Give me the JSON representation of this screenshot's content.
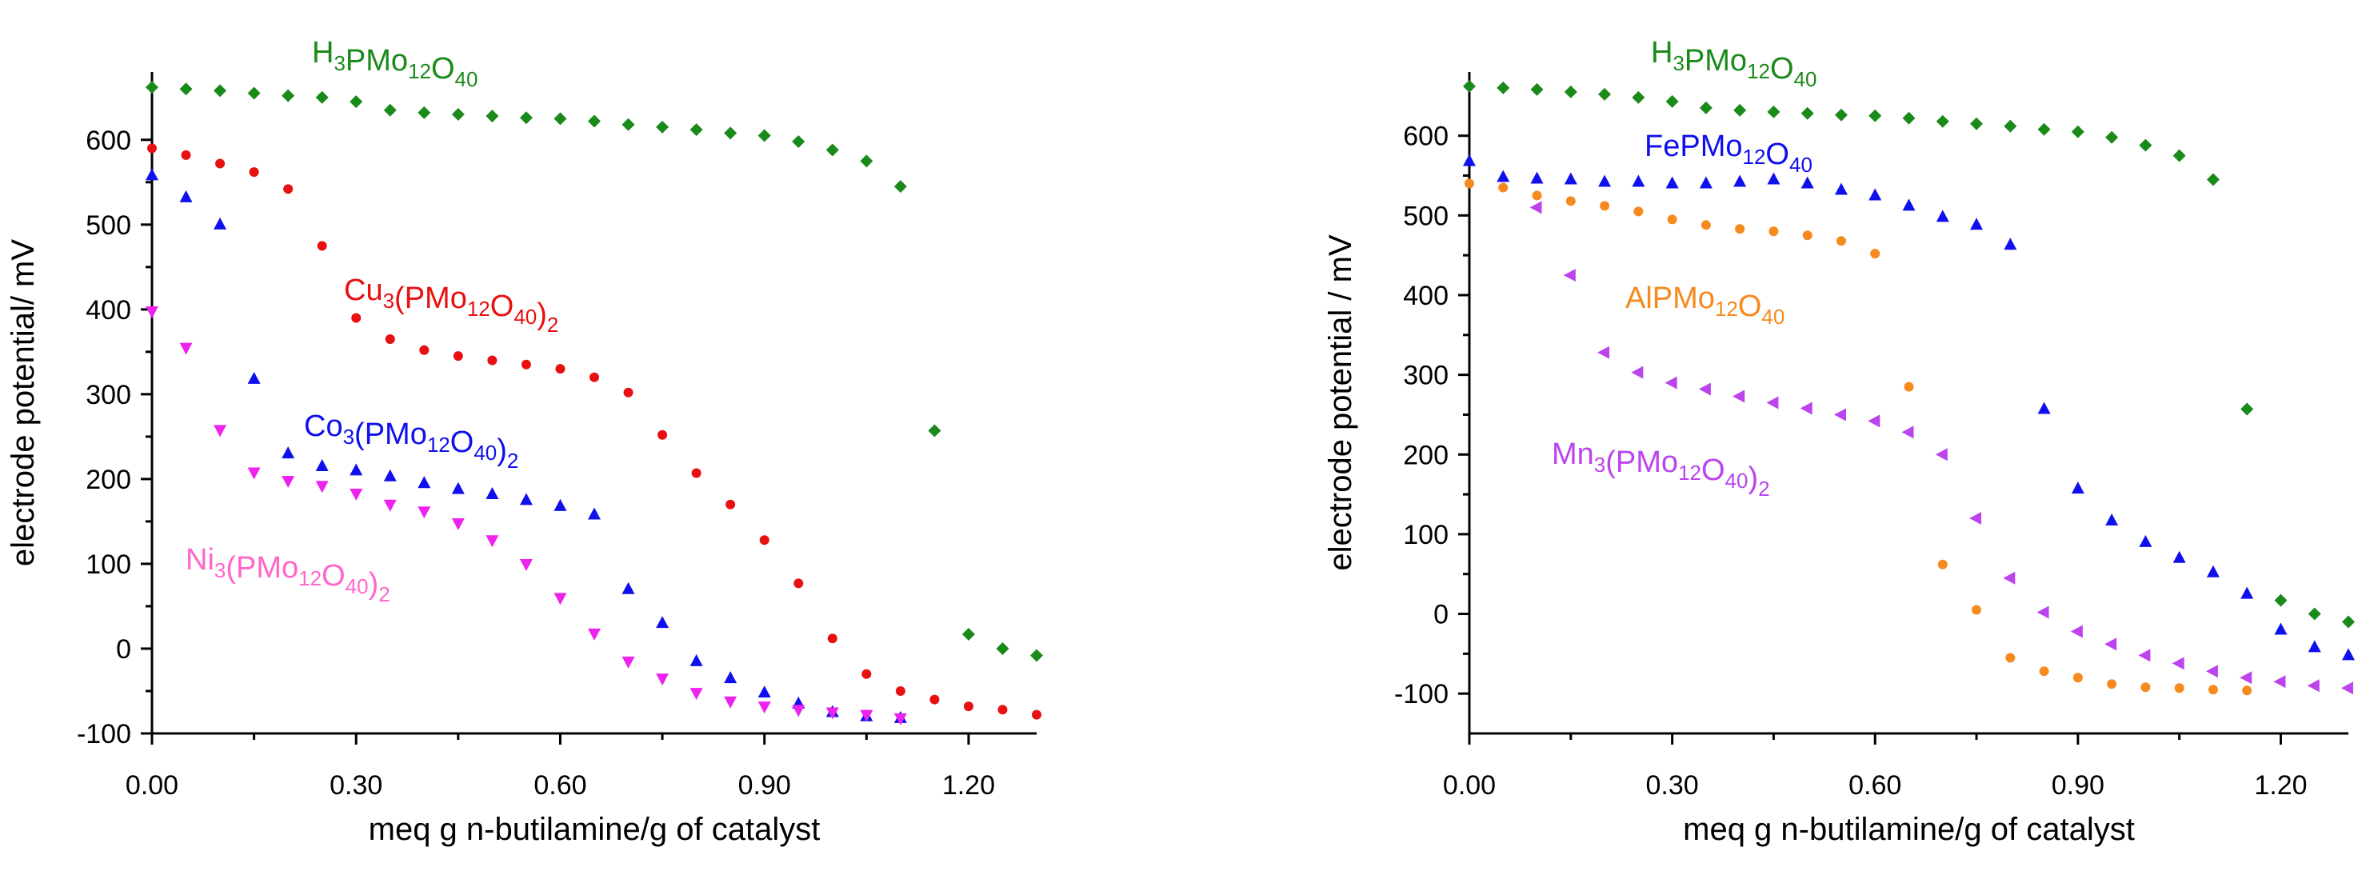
{
  "chart_data": [
    {
      "type": "scatter",
      "title": "",
      "xlabel": "meq g n-butilamine/g of catalyst",
      "ylabel": "electrode potential/ mV",
      "xlim": [
        0,
        1.3
      ],
      "ylim": [
        -100,
        680
      ],
      "xticks": [
        "0.00",
        "0.30",
        "0.60",
        "0.90",
        "1.20"
      ],
      "xtick_values": [
        0,
        0.3,
        0.6,
        0.9,
        1.2
      ],
      "yticks": [
        "-100",
        "0",
        "100",
        "200",
        "300",
        "400",
        "500",
        "600"
      ],
      "ytick_values": [
        -100,
        0,
        100,
        200,
        300,
        400,
        500,
        600
      ],
      "series": [
        {
          "name": "H3PMo12O40",
          "label_main": "H",
          "label_sub1": "3",
          "label_mid": "PMo",
          "label_sub2": "12",
          "label_mid2": "O",
          "label_sub3": "40",
          "label_tail": "",
          "color": "#1a8a1a",
          "marker": "diamond",
          "x": [
            0.0,
            0.05,
            0.1,
            0.15,
            0.2,
            0.25,
            0.3,
            0.35,
            0.4,
            0.45,
            0.5,
            0.55,
            0.6,
            0.65,
            0.7,
            0.75,
            0.8,
            0.85,
            0.9,
            0.95,
            1.0,
            1.05,
            1.1,
            1.15,
            1.2,
            1.25,
            1.3
          ],
          "y": [
            662,
            660,
            658,
            655,
            652,
            650,
            645,
            635,
            632,
            630,
            628,
            626,
            625,
            622,
            618,
            615,
            612,
            608,
            605,
            598,
            588,
            575,
            545,
            257,
            17,
            0,
            -8
          ]
        },
        {
          "name": "Cu3(PMo12O40)2",
          "label_main": "Cu",
          "label_sub1": "3",
          "label_mid": "(PMo",
          "label_sub2": "12",
          "label_mid2": "O",
          "label_sub3": "40",
          "label_tail": ")",
          "label_sub4": "2",
          "color": "#e81010",
          "marker": "circle",
          "x": [
            0.0,
            0.05,
            0.1,
            0.15,
            0.2,
            0.25,
            0.3,
            0.35,
            0.4,
            0.45,
            0.5,
            0.55,
            0.6,
            0.65,
            0.7,
            0.75,
            0.8,
            0.85,
            0.9,
            0.95,
            1.0,
            1.05,
            1.1,
            1.15,
            1.2,
            1.25,
            1.3
          ],
          "y": [
            590,
            582,
            572,
            562,
            542,
            475,
            390,
            365,
            352,
            345,
            340,
            335,
            330,
            320,
            302,
            252,
            207,
            170,
            128,
            77,
            12,
            -30,
            -50,
            -60,
            -68,
            -72,
            -78
          ]
        },
        {
          "name": "Co3(PMo12O40)2",
          "label_main": "Co",
          "label_sub1": "3",
          "label_mid": "(PMo",
          "label_sub2": "12",
          "label_mid2": "O",
          "label_sub3": "40",
          "label_tail": ")",
          "label_sub4": "2",
          "color": "#1010ee",
          "marker": "triangle-up",
          "x": [
            0.0,
            0.05,
            0.1,
            0.15,
            0.2,
            0.25,
            0.3,
            0.35,
            0.4,
            0.45,
            0.5,
            0.55,
            0.6,
            0.65,
            0.7,
            0.75,
            0.8,
            0.85,
            0.9,
            0.95,
            1.0,
            1.05,
            1.1
          ],
          "y": [
            558,
            532,
            500,
            318,
            230,
            215,
            210,
            203,
            195,
            188,
            182,
            175,
            168,
            158,
            70,
            30,
            -15,
            -35,
            -52,
            -65,
            -75,
            -80,
            -82
          ]
        },
        {
          "name": "Ni3(PMo12O40)2",
          "label_main": "Ni",
          "label_sub1": "3",
          "label_mid": "(PMo",
          "label_sub2": "12",
          "label_mid2": "O",
          "label_sub3": "40",
          "label_tail": ")",
          "label_sub4": "2",
          "color": "#ee22ee",
          "label_color": "#ff66cc",
          "marker": "triangle-down",
          "x": [
            0.0,
            0.05,
            0.1,
            0.15,
            0.2,
            0.25,
            0.3,
            0.35,
            0.4,
            0.45,
            0.5,
            0.55,
            0.6,
            0.65,
            0.7,
            0.75,
            0.8,
            0.85,
            0.9,
            0.95,
            1.0,
            1.05,
            1.1
          ],
          "y": [
            398,
            355,
            258,
            208,
            198,
            192,
            183,
            170,
            162,
            148,
            128,
            100,
            60,
            18,
            -15,
            -35,
            -52,
            -62,
            -68,
            -72,
            -75,
            -78,
            -82
          ]
        }
      ]
    },
    {
      "type": "scatter",
      "title": "",
      "xlabel": "meq g n-butilamine/g of catalyst",
      "ylabel": "electrode potential / mV",
      "xlim": [
        0,
        1.3
      ],
      "ylim": [
        -150,
        680
      ],
      "xticks": [
        "0.00",
        "0.30",
        "0.60",
        "0.90",
        "1.20"
      ],
      "xtick_values": [
        0,
        0.3,
        0.6,
        0.9,
        1.2
      ],
      "yticks": [
        "-100",
        "0",
        "100",
        "200",
        "300",
        "400",
        "500",
        "600"
      ],
      "ytick_values": [
        -100,
        0,
        100,
        200,
        300,
        400,
        500,
        600
      ],
      "series": [
        {
          "name": "H3PMo12O40",
          "label_main": "H",
          "label_sub1": "3",
          "label_mid": "PMo",
          "label_sub2": "12",
          "label_mid2": "O",
          "label_sub3": "40",
          "label_tail": "",
          "color": "#1a8a1a",
          "marker": "diamond",
          "x": [
            0.0,
            0.05,
            0.1,
            0.15,
            0.2,
            0.25,
            0.3,
            0.35,
            0.4,
            0.45,
            0.5,
            0.55,
            0.6,
            0.65,
            0.7,
            0.75,
            0.8,
            0.85,
            0.9,
            0.95,
            1.0,
            1.05,
            1.1,
            1.15,
            1.2,
            1.25,
            1.3
          ],
          "y": [
            662,
            660,
            658,
            655,
            652,
            648,
            643,
            635,
            632,
            630,
            628,
            626,
            625,
            622,
            618,
            615,
            612,
            608,
            605,
            598,
            588,
            575,
            545,
            257,
            17,
            0,
            -10
          ]
        },
        {
          "name": "FePMo12O40",
          "label_main": "Fe",
          "label_sub1": "",
          "label_mid": "PMo",
          "label_sub2": "12",
          "label_mid2": "O",
          "label_sub3": "40",
          "label_tail": "",
          "color": "#1010ee",
          "marker": "triangle-up",
          "x": [
            0.0,
            0.05,
            0.1,
            0.15,
            0.2,
            0.25,
            0.3,
            0.35,
            0.4,
            0.45,
            0.5,
            0.55,
            0.6,
            0.65,
            0.7,
            0.75,
            0.8,
            0.85,
            0.9,
            0.95,
            1.0,
            1.05,
            1.1,
            1.15,
            1.2,
            1.25,
            1.3
          ],
          "y": [
            568,
            548,
            546,
            545,
            542,
            542,
            540,
            540,
            542,
            545,
            540,
            532,
            525,
            512,
            498,
            488,
            463,
            257,
            157,
            117,
            90,
            70,
            52,
            25,
            -20,
            -42,
            -52
          ]
        },
        {
          "name": "AlPMo12O40",
          "label_main": "Al",
          "label_sub1": "",
          "label_mid": "PMo",
          "label_sub2": "12",
          "label_mid2": "O",
          "label_sub3": "40",
          "label_tail": "",
          "color": "#f58a1f",
          "marker": "circle",
          "x": [
            0.0,
            0.05,
            0.1,
            0.15,
            0.2,
            0.25,
            0.3,
            0.35,
            0.4,
            0.45,
            0.5,
            0.55,
            0.6,
            0.65,
            0.7,
            0.75,
            0.8,
            0.85,
            0.9,
            0.95,
            1.0,
            1.05,
            1.1,
            1.15
          ],
          "y": [
            540,
            535,
            525,
            518,
            512,
            505,
            495,
            488,
            483,
            480,
            475,
            468,
            452,
            285,
            62,
            5,
            -55,
            -72,
            -80,
            -88,
            -92,
            -93,
            -95,
            -96
          ]
        },
        {
          "name": "Mn3(PMo12O40)2",
          "label_main": "Mn",
          "label_sub1": "3",
          "label_mid": "(PMo",
          "label_sub2": "12",
          "label_mid2": "O",
          "label_sub3": "40",
          "label_tail": ")",
          "label_sub4": "2",
          "color": "#bb44ee",
          "marker": "triangle-left",
          "x": [
            0.1,
            0.15,
            0.2,
            0.25,
            0.3,
            0.35,
            0.4,
            0.45,
            0.5,
            0.55,
            0.6,
            0.65,
            0.7,
            0.75,
            0.8,
            0.85,
            0.9,
            0.95,
            1.0,
            1.05,
            1.1,
            1.15,
            1.2,
            1.25,
            1.3
          ],
          "y": [
            510,
            425,
            328,
            303,
            290,
            282,
            273,
            265,
            258,
            250,
            242,
            228,
            200,
            120,
            45,
            2,
            -22,
            -38,
            -52,
            -62,
            -72,
            -80,
            -85,
            -90,
            -93
          ]
        }
      ]
    }
  ]
}
